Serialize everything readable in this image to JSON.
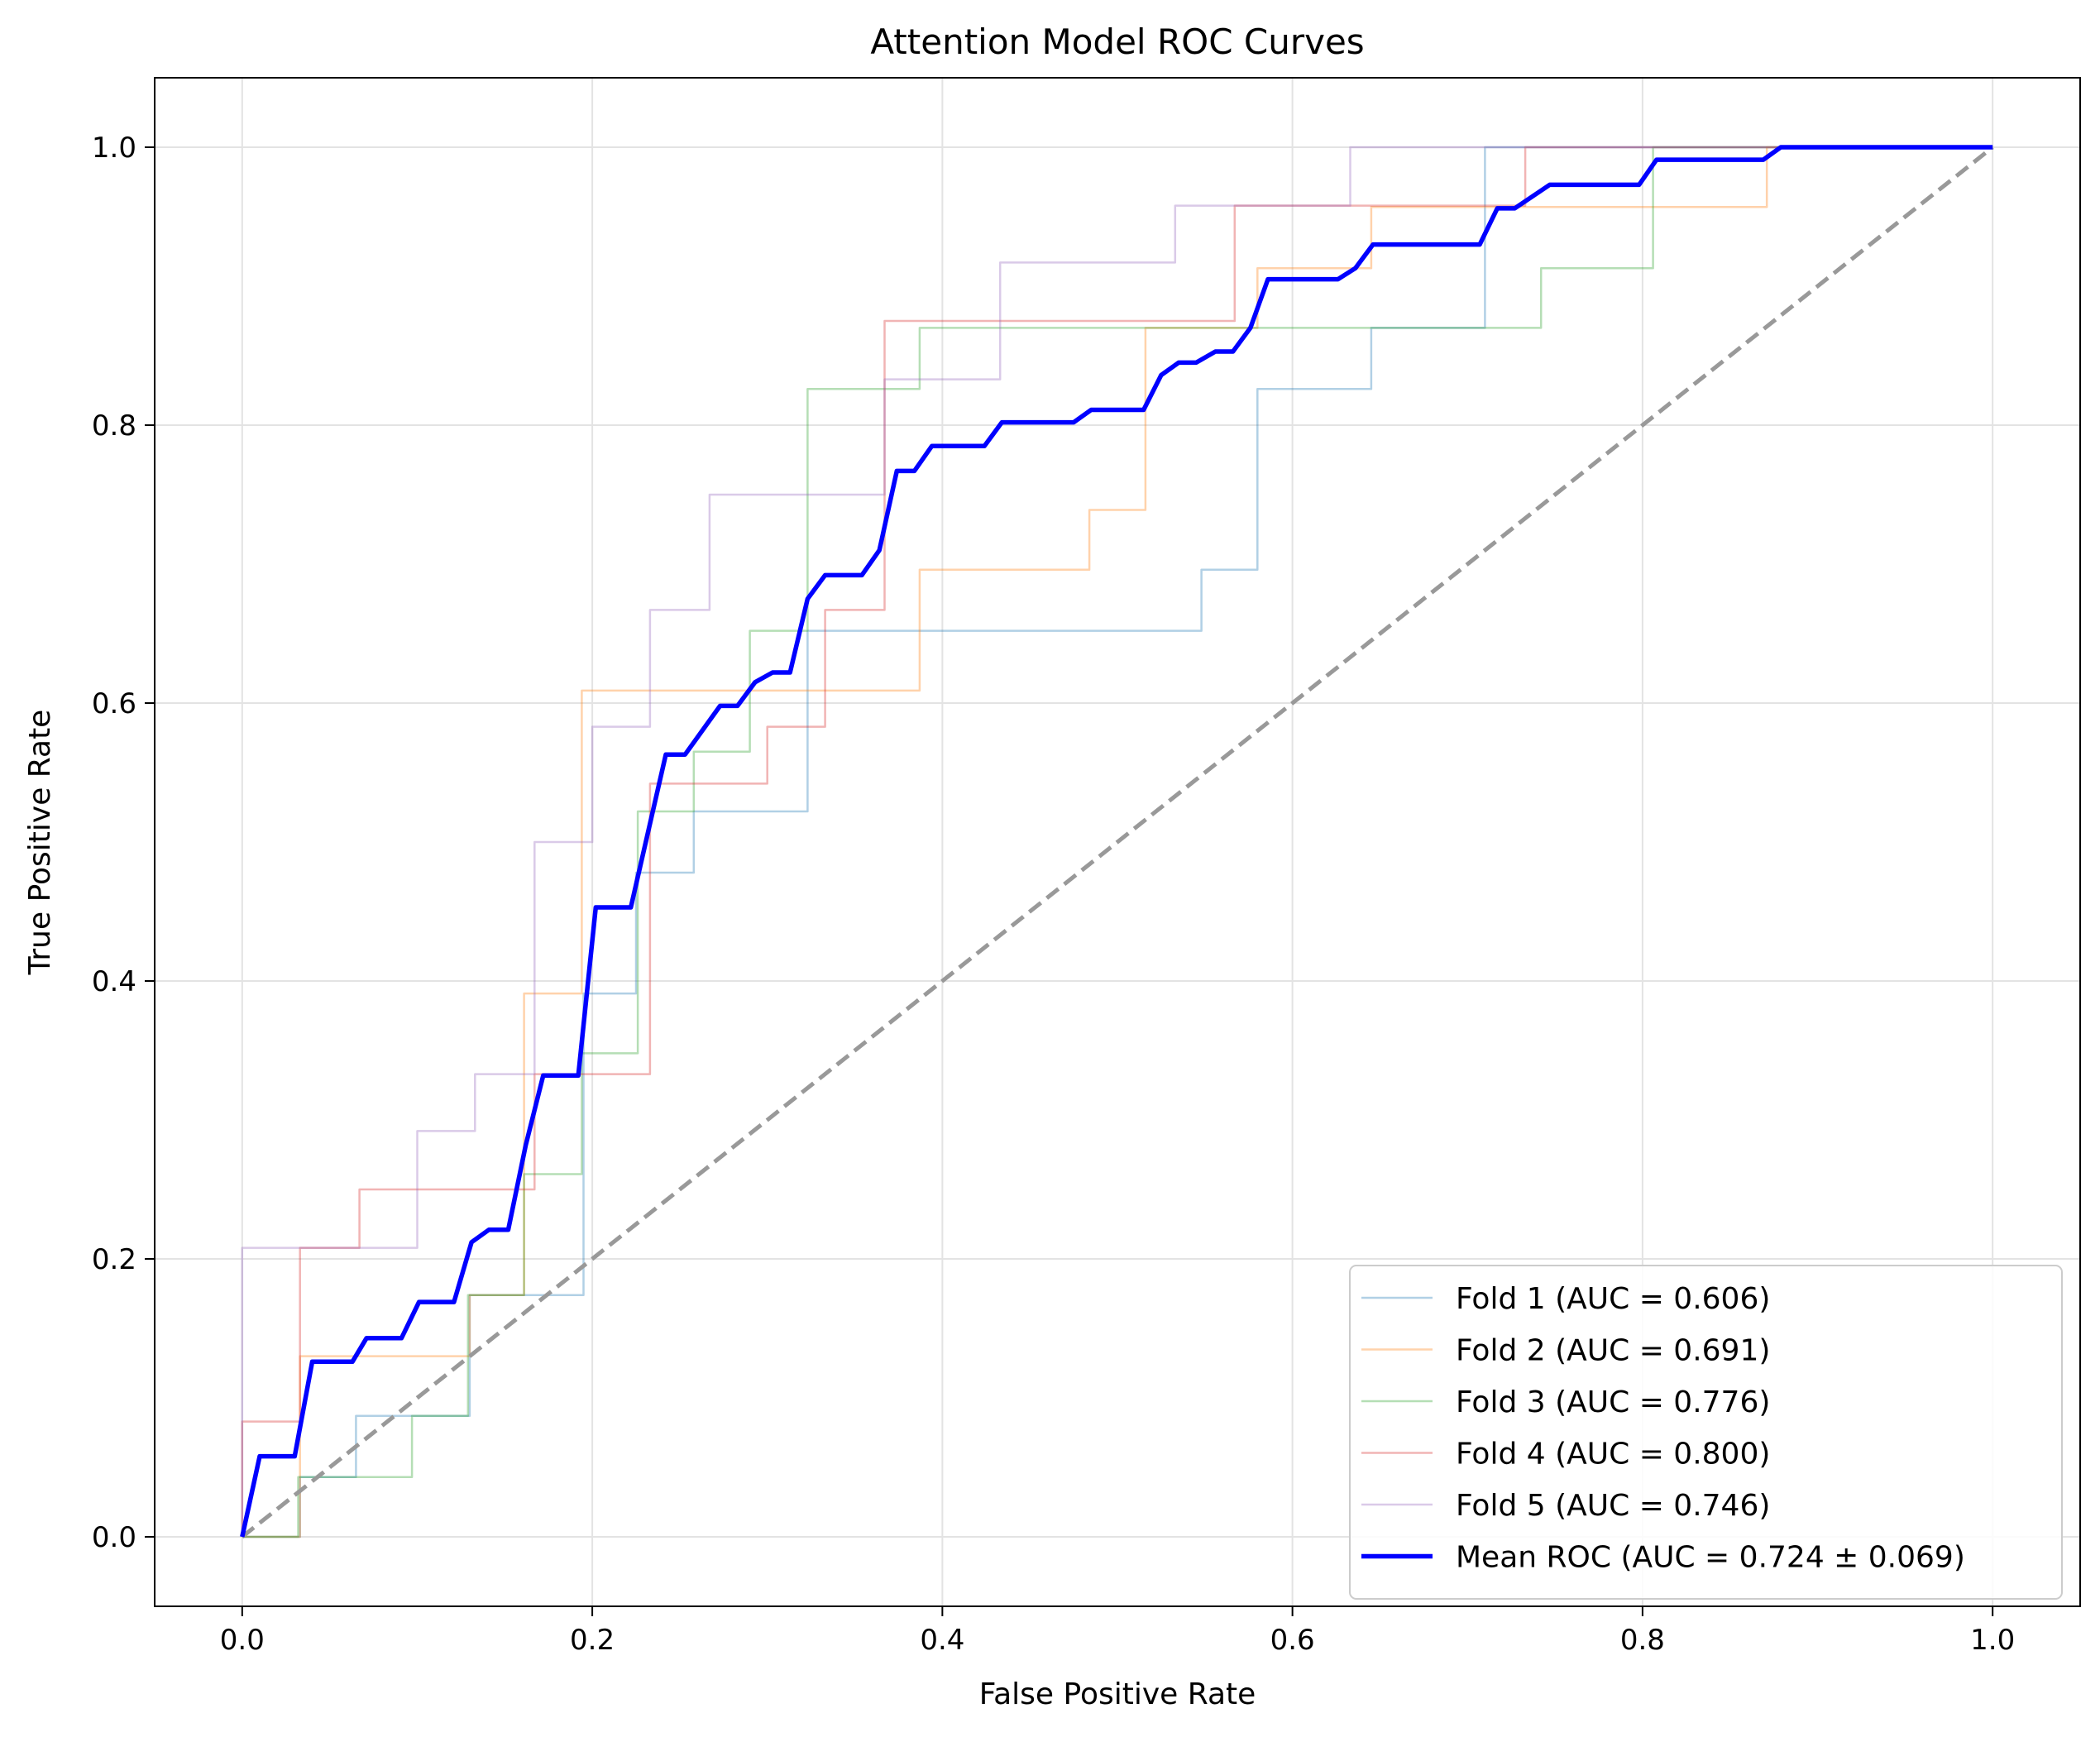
{
  "chart_data": {
    "type": "line",
    "title": "Attention Model ROC Curves",
    "xlabel": "False Positive Rate",
    "ylabel": "True Positive Rate",
    "xlim": [
      -0.05,
      1.05
    ],
    "ylim": [
      -0.05,
      1.05
    ],
    "xticks": [
      "0.0",
      "0.2",
      "0.4",
      "0.6",
      "0.8",
      "1.0"
    ],
    "yticks": [
      "0.0",
      "0.2",
      "0.4",
      "0.6",
      "0.8",
      "1.0"
    ],
    "grid": true,
    "legend_position": "lower-right",
    "series": [
      {
        "name": "Fold 1 (AUC = 0.606)",
        "color": "#1f77b4",
        "x": [
          0,
          0.033,
          0.033,
          0.065,
          0.065,
          0.13,
          0.13,
          0.195,
          0.195,
          0.225,
          0.225,
          0.258,
          0.258,
          0.323,
          0.323,
          0.548,
          0.548,
          0.58,
          0.58,
          0.645,
          0.645,
          0.71,
          0.71,
          1.0
        ],
        "y": [
          0,
          0,
          0.043,
          0.043,
          0.087,
          0.087,
          0.174,
          0.174,
          0.391,
          0.391,
          0.478,
          0.478,
          0.522,
          0.522,
          0.652,
          0.652,
          0.696,
          0.696,
          0.826,
          0.826,
          0.87,
          0.87,
          1.0,
          1.0
        ]
      },
      {
        "name": "Fold 2 (AUC = 0.691)",
        "color": "#ff7f0e",
        "x": [
          0,
          0.033,
          0.033,
          0.13,
          0.13,
          0.161,
          0.161,
          0.194,
          0.194,
          0.387,
          0.387,
          0.484,
          0.484,
          0.516,
          0.516,
          0.58,
          0.58,
          0.645,
          0.645,
          0.871,
          0.871,
          1.0
        ],
        "y": [
          0,
          0,
          0.13,
          0.13,
          0.174,
          0.174,
          0.391,
          0.391,
          0.609,
          0.609,
          0.696,
          0.696,
          0.739,
          0.739,
          0.87,
          0.87,
          0.913,
          0.913,
          0.957,
          0.957,
          1.0,
          1.0
        ]
      },
      {
        "name": "Fold 3 (AUC = 0.776)",
        "color": "#2ca02c",
        "x": [
          0,
          0.032,
          0.032,
          0.097,
          0.097,
          0.129,
          0.129,
          0.161,
          0.161,
          0.194,
          0.194,
          0.226,
          0.226,
          0.258,
          0.258,
          0.29,
          0.29,
          0.323,
          0.323,
          0.387,
          0.387,
          0.742,
          0.742,
          0.806,
          0.806,
          1.0
        ],
        "y": [
          0,
          0,
          0.043,
          0.043,
          0.087,
          0.087,
          0.174,
          0.174,
          0.261,
          0.261,
          0.348,
          0.348,
          0.522,
          0.522,
          0.565,
          0.565,
          0.652,
          0.652,
          0.826,
          0.826,
          0.87,
          0.87,
          0.913,
          0.913,
          1.0,
          1.0
        ]
      },
      {
        "name": "Fold 4 (AUC = 0.800)",
        "color": "#d62728",
        "x": [
          0,
          0,
          0.033,
          0.033,
          0.067,
          0.067,
          0.167,
          0.167,
          0.233,
          0.233,
          0.3,
          0.3,
          0.333,
          0.333,
          0.367,
          0.367,
          0.567,
          0.567,
          0.733,
          0.733,
          1.0
        ],
        "y": [
          0,
          0.083,
          0.083,
          0.208,
          0.208,
          0.25,
          0.25,
          0.333,
          0.333,
          0.542,
          0.542,
          0.583,
          0.583,
          0.667,
          0.667,
          0.875,
          0.875,
          0.958,
          0.958,
          1.0,
          1.0
        ]
      },
      {
        "name": "Fold 5 (AUC = 0.746)",
        "color": "#9467bd",
        "x": [
          0,
          0,
          0.1,
          0.1,
          0.133,
          0.133,
          0.167,
          0.167,
          0.2,
          0.2,
          0.233,
          0.233,
          0.267,
          0.267,
          0.367,
          0.367,
          0.433,
          0.433,
          0.533,
          0.533,
          0.633,
          0.633,
          1.0
        ],
        "y": [
          0,
          0.208,
          0.208,
          0.292,
          0.292,
          0.333,
          0.333,
          0.5,
          0.5,
          0.583,
          0.583,
          0.667,
          0.667,
          0.75,
          0.75,
          0.833,
          0.833,
          0.917,
          0.917,
          0.958,
          0.958,
          1.0,
          1.0
        ]
      },
      {
        "name": "Mean ROC (AUC = 0.724 ± 0.069)",
        "color": "#0000ff",
        "x": [
          0,
          0.01,
          0.03,
          0.04,
          0.063,
          0.071,
          0.091,
          0.101,
          0.121,
          0.131,
          0.141,
          0.152,
          0.162,
          0.172,
          0.192,
          0.202,
          0.222,
          0.242,
          0.253,
          0.273,
          0.283,
          0.293,
          0.303,
          0.313,
          0.323,
          0.333,
          0.354,
          0.364,
          0.374,
          0.384,
          0.394,
          0.424,
          0.434,
          0.475,
          0.485,
          0.515,
          0.525,
          0.535,
          0.545,
          0.556,
          0.566,
          0.576,
          0.586,
          0.626,
          0.636,
          0.646,
          0.707,
          0.717,
          0.727,
          0.747,
          0.798,
          0.808,
          0.869,
          0.879,
          1.0
        ],
        "y": [
          0,
          0.058,
          0.058,
          0.126,
          0.126,
          0.143,
          0.143,
          0.169,
          0.169,
          0.212,
          0.221,
          0.221,
          0.282,
          0.332,
          0.332,
          0.453,
          0.453,
          0.563,
          0.563,
          0.598,
          0.598,
          0.615,
          0.622,
          0.622,
          0.675,
          0.692,
          0.692,
          0.71,
          0.767,
          0.767,
          0.785,
          0.785,
          0.802,
          0.802,
          0.811,
          0.811,
          0.836,
          0.845,
          0.845,
          0.853,
          0.853,
          0.87,
          0.905,
          0.905,
          0.913,
          0.93,
          0.93,
          0.956,
          0.956,
          0.973,
          0.973,
          0.991,
          0.991,
          1.0,
          1.0
        ]
      },
      {
        "name": "",
        "color": "#999999",
        "x": [
          0,
          1
        ],
        "y": [
          0,
          1
        ]
      }
    ]
  }
}
